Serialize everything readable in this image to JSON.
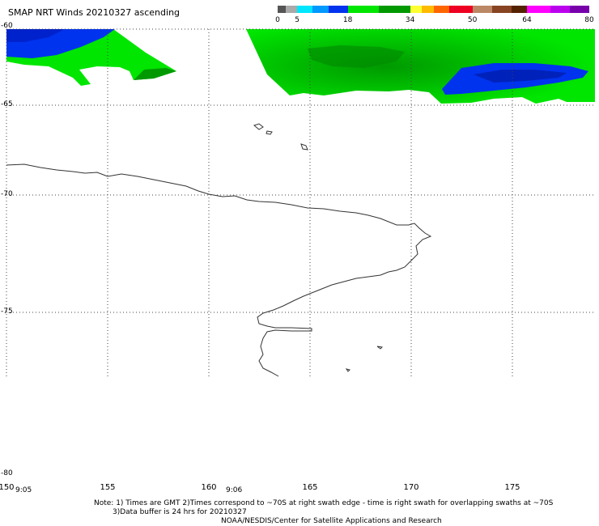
{
  "title": "SMAP NRT Winds 20210327 ascending",
  "colorbar": {
    "labels": [
      {
        "text": "0",
        "value": 0
      },
      {
        "text": "5",
        "value": 5
      },
      {
        "text": "18",
        "value": 18
      },
      {
        "text": "34",
        "value": 34
      },
      {
        "text": "50",
        "value": 50
      },
      {
        "text": "64",
        "value": 64
      },
      {
        "text": "80",
        "value": 80
      }
    ],
    "segments": [
      {
        "from": 0,
        "to": 2,
        "color": "#555555"
      },
      {
        "from": 2,
        "to": 5,
        "color": "#aaaaaa"
      },
      {
        "from": 5,
        "to": 9,
        "color": "#00e6ff"
      },
      {
        "from": 9,
        "to": 13,
        "color": "#0099ff"
      },
      {
        "from": 13,
        "to": 18,
        "color": "#0033ee"
      },
      {
        "from": 18,
        "to": 26,
        "color": "#00e600"
      },
      {
        "from": 26,
        "to": 34,
        "color": "#009900"
      },
      {
        "from": 34,
        "to": 37,
        "color": "#ffff33"
      },
      {
        "from": 37,
        "to": 40,
        "color": "#ffbb00"
      },
      {
        "from": 40,
        "to": 44,
        "color": "#ff6600"
      },
      {
        "from": 44,
        "to": 50,
        "color": "#ee0022"
      },
      {
        "from": 50,
        "to": 55,
        "color": "#bb8866"
      },
      {
        "from": 55,
        "to": 60,
        "color": "#884422"
      },
      {
        "from": 60,
        "to": 64,
        "color": "#552200"
      },
      {
        "from": 64,
        "to": 70,
        "color": "#ff00ff"
      },
      {
        "from": 70,
        "to": 75,
        "color": "#bb00ee"
      },
      {
        "from": 75,
        "to": 80,
        "color": "#7700aa"
      }
    ]
  },
  "map": {
    "lat_labels": [
      "-60",
      "-65",
      "-70",
      "-75",
      "-80"
    ],
    "lon_labels": [
      "150",
      "155",
      "160",
      "165",
      "170",
      "175"
    ],
    "time_labels": [
      "9:05",
      "9:06"
    ]
  },
  "footer": {
    "note1": "Note: 1) Times are GMT 2)Times correspond to ~70S at right swath edge - time is right swath for overlapping swaths at ~70S",
    "note2": "3)Data buffer is 24 hrs for 20210327",
    "credit": "NOAA/NESDIS/Center for Satellite Applications and Research"
  }
}
